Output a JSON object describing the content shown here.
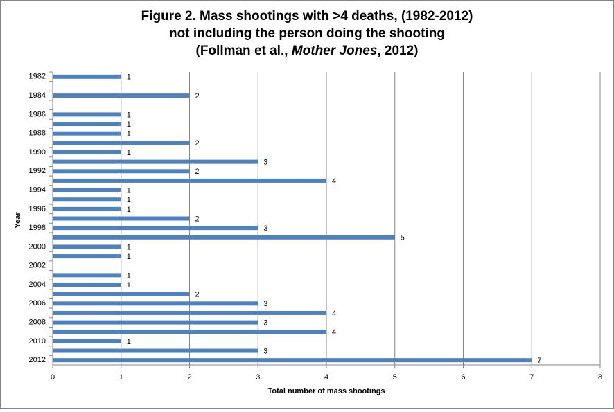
{
  "chart_data": {
    "type": "bar",
    "orientation": "horizontal",
    "title_lines": [
      [
        "Figure 2. Mass shootings with >4 deaths, (1982-2012)"
      ],
      [
        "not including the person doing the shooting"
      ],
      [
        "(Follman et al., ",
        "Mother Jones",
        ", 2012)"
      ]
    ],
    "x_label": "Total number of mass shootings",
    "y_label": "Year",
    "categories": [
      "1982",
      null,
      "1984",
      null,
      "1986",
      null,
      "1988",
      null,
      "1990",
      null,
      "1992",
      null,
      "1994",
      null,
      "1996",
      null,
      "1998",
      null,
      "2000",
      null,
      "2002",
      null,
      "2004",
      null,
      "2006",
      null,
      "2008",
      null,
      "2010",
      null,
      "2012"
    ],
    "values": [
      1,
      null,
      2,
      null,
      1,
      1,
      1,
      2,
      1,
      3,
      2,
      4,
      1,
      1,
      1,
      2,
      3,
      5,
      1,
      1,
      null,
      1,
      1,
      2,
      3,
      4,
      3,
      4,
      1,
      3,
      7
    ],
    "color": "#4f81bd",
    "xlim": [
      0,
      8
    ],
    "xticks": [
      0,
      1,
      2,
      3,
      4,
      5,
      6,
      7,
      8
    ],
    "grid": true
  }
}
